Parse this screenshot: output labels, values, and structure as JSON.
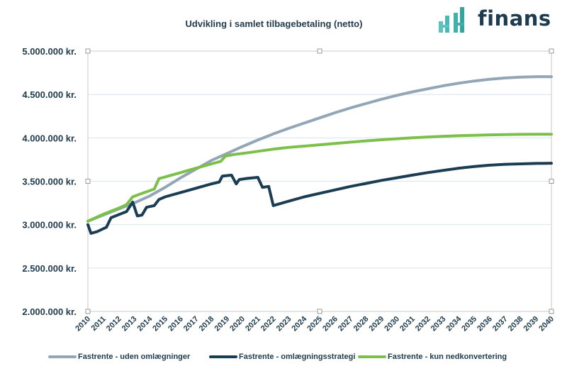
{
  "header": {
    "title": "Udvikling i samlet tilbagebetaling (netto)",
    "logo_text": "finans",
    "logo_icon": "bar-chart-h-logo-icon"
  },
  "colors": {
    "uden_omlaegninger": "#93a6b5",
    "omlaegningsstrategi": "#1b3d53",
    "nedkonvertering": "#7cc04b",
    "grid": "#d6e4ee",
    "axis_text": "#1f3a4d"
  },
  "chart_data": {
    "type": "line",
    "title": "Udvikling i samlet tilbagebetaling (netto)",
    "xlabel": "",
    "ylabel": "",
    "ylim": [
      2000000,
      5000000
    ],
    "xlim": [
      2010,
      2040
    ],
    "grid": true,
    "legend_position": "bottom",
    "y_tick_labels": [
      "2.000.000 kr.",
      "2.500.000 kr.",
      "3.000.000 kr.",
      "3.500.000 kr.",
      "4.000.000 kr.",
      "4.500.000 kr.",
      "5.000.000 kr."
    ],
    "y_ticks": [
      2000000,
      2500000,
      3000000,
      3500000,
      4000000,
      4500000,
      5000000
    ],
    "x_tick_labels": [
      "2010",
      "2011",
      "2012",
      "2013",
      "2014",
      "2015",
      "2016",
      "2017",
      "2018",
      "2019",
      "2020",
      "2021",
      "2022",
      "2023",
      "2024",
      "2025",
      "2026",
      "2027",
      "2028",
      "2029",
      "2030",
      "2031",
      "2032",
      "2033",
      "2034",
      "2035",
      "2036",
      "2037",
      "2038",
      "2039",
      "2040"
    ],
    "series": [
      {
        "name": "Fastrente - uden omlægninger",
        "color_key": "uden_omlaegninger",
        "points": [
          [
            2010,
            3040000
          ],
          [
            2011,
            3110000
          ],
          [
            2012,
            3180000
          ],
          [
            2013,
            3250000
          ],
          [
            2014,
            3330000
          ],
          [
            2015,
            3430000
          ],
          [
            2016,
            3540000
          ],
          [
            2017,
            3640000
          ],
          [
            2018,
            3740000
          ],
          [
            2019,
            3820000
          ],
          [
            2020,
            3900000
          ],
          [
            2021,
            3975000
          ],
          [
            2022,
            4045000
          ],
          [
            2023,
            4110000
          ],
          [
            2024,
            4170000
          ],
          [
            2025,
            4230000
          ],
          [
            2026,
            4290000
          ],
          [
            2027,
            4345000
          ],
          [
            2028,
            4395000
          ],
          [
            2029,
            4445000
          ],
          [
            2030,
            4490000
          ],
          [
            2031,
            4530000
          ],
          [
            2032,
            4565000
          ],
          [
            2033,
            4600000
          ],
          [
            2034,
            4630000
          ],
          [
            2035,
            4655000
          ],
          [
            2036,
            4675000
          ],
          [
            2037,
            4690000
          ],
          [
            2038,
            4700000
          ],
          [
            2039,
            4705000
          ],
          [
            2040,
            4705000
          ]
        ]
      },
      {
        "name": "Fastrente - omlægningsstrategi",
        "color_key": "omlaegningsstrategi",
        "points": [
          [
            2010,
            3000000
          ],
          [
            2010.2,
            2900000
          ],
          [
            2010.6,
            2920000
          ],
          [
            2011.2,
            2970000
          ],
          [
            2011.5,
            3080000
          ],
          [
            2012.2,
            3130000
          ],
          [
            2012.5,
            3150000
          ],
          [
            2012.9,
            3260000
          ],
          [
            2013.2,
            3100000
          ],
          [
            2013.5,
            3110000
          ],
          [
            2013.8,
            3200000
          ],
          [
            2014.3,
            3220000
          ],
          [
            2014.6,
            3290000
          ],
          [
            2015,
            3320000
          ],
          [
            2016,
            3370000
          ],
          [
            2017,
            3420000
          ],
          [
            2018,
            3470000
          ],
          [
            2018.5,
            3490000
          ],
          [
            2018.7,
            3560000
          ],
          [
            2019.3,
            3570000
          ],
          [
            2019.6,
            3470000
          ],
          [
            2019.8,
            3520000
          ],
          [
            2020.2,
            3530000
          ],
          [
            2021,
            3545000
          ],
          [
            2021.3,
            3430000
          ],
          [
            2021.7,
            3440000
          ],
          [
            2022,
            3220000
          ],
          [
            2023,
            3270000
          ],
          [
            2024,
            3320000
          ],
          [
            2025,
            3360000
          ],
          [
            2026,
            3400000
          ],
          [
            2027,
            3440000
          ],
          [
            2028,
            3475000
          ],
          [
            2029,
            3510000
          ],
          [
            2030,
            3540000
          ],
          [
            2031,
            3570000
          ],
          [
            2032,
            3600000
          ],
          [
            2033,
            3625000
          ],
          [
            2034,
            3650000
          ],
          [
            2035,
            3670000
          ],
          [
            2036,
            3685000
          ],
          [
            2037,
            3695000
          ],
          [
            2038,
            3700000
          ],
          [
            2039,
            3705000
          ],
          [
            2040,
            3708000
          ]
        ]
      },
      {
        "name": "Fastrente - kun nedkonvertering",
        "color_key": "nedkonvertering",
        "points": [
          [
            2010,
            3040000
          ],
          [
            2011,
            3120000
          ],
          [
            2012,
            3190000
          ],
          [
            2012.5,
            3230000
          ],
          [
            2012.9,
            3320000
          ],
          [
            2013.5,
            3360000
          ],
          [
            2014.3,
            3410000
          ],
          [
            2014.6,
            3530000
          ],
          [
            2015,
            3550000
          ],
          [
            2016,
            3600000
          ],
          [
            2017,
            3650000
          ],
          [
            2018,
            3700000
          ],
          [
            2018.6,
            3730000
          ],
          [
            2018.9,
            3790000
          ],
          [
            2019.5,
            3810000
          ],
          [
            2020,
            3820000
          ],
          [
            2021,
            3845000
          ],
          [
            2022,
            3870000
          ],
          [
            2023,
            3890000
          ],
          [
            2024,
            3905000
          ],
          [
            2025,
            3920000
          ],
          [
            2026,
            3935000
          ],
          [
            2027,
            3950000
          ],
          [
            2028,
            3965000
          ],
          [
            2029,
            3978000
          ],
          [
            2030,
            3990000
          ],
          [
            2031,
            4000000
          ],
          [
            2032,
            4010000
          ],
          [
            2033,
            4018000
          ],
          [
            2034,
            4025000
          ],
          [
            2035,
            4030000
          ],
          [
            2036,
            4035000
          ],
          [
            2037,
            4038000
          ],
          [
            2038,
            4040000
          ],
          [
            2039,
            4042000
          ],
          [
            2040,
            4042000
          ]
        ]
      }
    ]
  }
}
